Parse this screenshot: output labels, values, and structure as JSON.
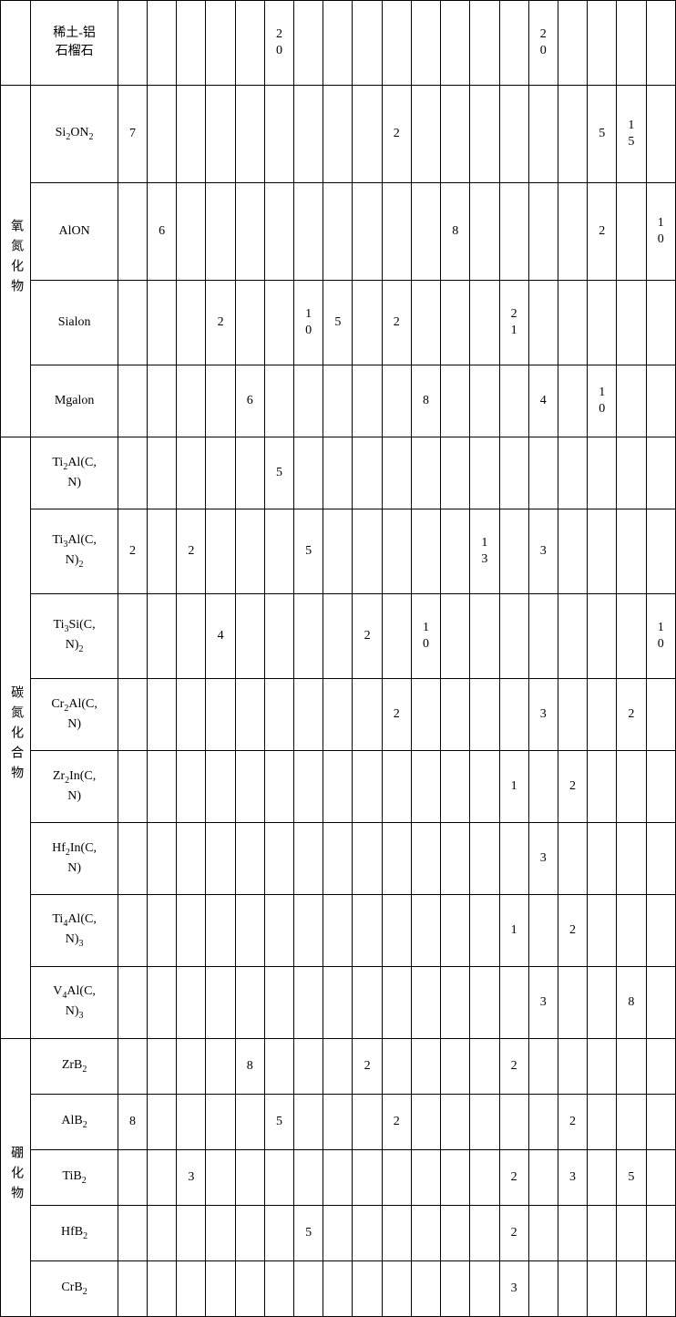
{
  "groups": [
    {
      "label": "",
      "rows": [
        {
          "name": "稀土-铝石榴石",
          "v": [
            "",
            "",
            "",
            "",
            "",
            "20",
            "",
            "",
            "",
            "",
            "",
            "",
            "",
            "",
            "20",
            "",
            "",
            "",
            ""
          ]
        }
      ]
    },
    {
      "label": "氧氮化物",
      "rows": [
        {
          "name": "Si₂ON₂",
          "v": [
            "7",
            "",
            "",
            "",
            "",
            "",
            "",
            "",
            "",
            "2",
            "",
            "",
            "",
            "",
            "",
            "",
            "5",
            "15",
            ""
          ]
        },
        {
          "name": "AlON",
          "v": [
            "",
            "6",
            "",
            "",
            "",
            "",
            "",
            "",
            "",
            "",
            "",
            "8",
            "",
            "",
            "",
            "",
            "2",
            "",
            "10"
          ]
        },
        {
          "name": "Sialon",
          "v": [
            "",
            "",
            "",
            "2",
            "",
            "",
            "10",
            "5",
            "",
            "2",
            "",
            "",
            "",
            "21",
            "",
            "",
            "",
            "",
            ""
          ]
        },
        {
          "name": "Mgalon",
          "v": [
            "",
            "",
            "",
            "",
            "6",
            "",
            "",
            "",
            "",
            "",
            "8",
            "",
            "",
            "",
            "4",
            "",
            "10",
            "",
            ""
          ]
        }
      ]
    },
    {
      "label": "碳氮化合物",
      "rows": [
        {
          "name": "Ti₂Al(C,N)",
          "v": [
            "",
            "",
            "",
            "",
            "",
            "5",
            "",
            "",
            "",
            "",
            "",
            "",
            "",
            "",
            "",
            "",
            "",
            "",
            ""
          ]
        },
        {
          "name": "Ti₃Al(C,N)₂",
          "v": [
            "2",
            "",
            "2",
            "",
            "",
            "",
            "5",
            "",
            "",
            "",
            "",
            "",
            "13",
            "",
            "3",
            "",
            "",
            "",
            ""
          ]
        },
        {
          "name": "Ti₃Si(C,N)₂",
          "v": [
            "",
            "",
            "",
            "4",
            "",
            "",
            "",
            "",
            "2",
            "",
            "10",
            "",
            "",
            "",
            "",
            "",
            "",
            "",
            "10"
          ]
        },
        {
          "name": "Cr₂Al(C,N)",
          "v": [
            "",
            "",
            "",
            "",
            "",
            "",
            "",
            "",
            "",
            "2",
            "",
            "",
            "",
            "",
            "3",
            "",
            "",
            "2",
            ""
          ]
        },
        {
          "name": "Zr₂In(C,N)",
          "v": [
            "",
            "",
            "",
            "",
            "",
            "",
            "",
            "",
            "",
            "",
            "",
            "",
            "",
            "1",
            "",
            "2",
            "",
            "",
            ""
          ]
        },
        {
          "name": "Hf₂In(C,N)",
          "v": [
            "",
            "",
            "",
            "",
            "",
            "",
            "",
            "",
            "",
            "",
            "",
            "",
            "",
            "",
            "3",
            "",
            "",
            "",
            ""
          ]
        },
        {
          "name": "Ti₄Al(C,N)₃",
          "v": [
            "",
            "",
            "",
            "",
            "",
            "",
            "",
            "",
            "",
            "",
            "",
            "",
            "",
            "1",
            "",
            "2",
            "",
            "",
            ""
          ]
        },
        {
          "name": "V₄Al(C,N)₃",
          "v": [
            "",
            "",
            "",
            "",
            "",
            "",
            "",
            "",
            "",
            "",
            "",
            "",
            "",
            "",
            "3",
            "",
            "",
            "8",
            ""
          ]
        }
      ]
    },
    {
      "label": "硼化物",
      "rows": [
        {
          "name": "ZrB₂",
          "v": [
            "",
            "",
            "",
            "",
            "8",
            "",
            "",
            "",
            "2",
            "",
            "",
            "",
            "",
            "2",
            "",
            "",
            "",
            "",
            ""
          ]
        },
        {
          "name": "AlB₂",
          "v": [
            "8",
            "",
            "",
            "",
            "",
            "5",
            "",
            "",
            "",
            "2",
            "",
            "",
            "",
            "",
            "",
            "2",
            "",
            "",
            ""
          ]
        },
        {
          "name": "TiB₂",
          "v": [
            "",
            "",
            "3",
            "",
            "",
            "",
            "",
            "",
            "",
            "",
            "",
            "",
            "",
            "2",
            "",
            "3",
            "",
            "5",
            ""
          ]
        },
        {
          "name": "HfB₂",
          "v": [
            "",
            "",
            "",
            "",
            "",
            "",
            "5",
            "",
            "",
            "",
            "",
            "",
            "",
            "2",
            "",
            "",
            "",
            "",
            ""
          ]
        },
        {
          "name": "CrB₂",
          "v": [
            "",
            "",
            "",
            "",
            "",
            "",
            "",
            "",
            "",
            "",
            "",
            "",
            "",
            "3",
            "",
            "",
            "",
            "",
            ""
          ]
        }
      ]
    }
  ],
  "chem_markup": {
    "稀土-铝石榴石": "稀土-铝<br>石榴石",
    "Si₂ON₂": "Si<sub>2</sub>ON<sub>2</sub>",
    "AlON": "AlON",
    "Sialon": "Sialon",
    "Mgalon": "Mgalon",
    "Ti₂Al(C,N)": "Ti<sub>2</sub>Al(C,<br>N)",
    "Ti₃Al(C,N)₂": "Ti<sub>3</sub>Al(C,<br>N)<sub>2</sub>",
    "Ti₃Si(C,N)₂": "Ti<sub>3</sub>Si(C,<br>N)<sub>2</sub>",
    "Cr₂Al(C,N)": "Cr<sub>2</sub>Al(C,<br>N)",
    "Zr₂In(C,N)": "Zr<sub>2</sub>In(C,<br>N)",
    "Hf₂In(C,N)": "Hf<sub>2</sub>In(C,<br>N)",
    "Ti₄Al(C,N)₃": "Ti<sub>4</sub>Al(C,<br>N)<sub>3</sub>",
    "V₄Al(C,N)₃": "V<sub>4</sub>Al(C,<br>N)<sub>3</sub>",
    "ZrB₂": "ZrB<sub>2</sub>",
    "AlB₂": "AlB<sub>2</sub>",
    "TiB₂": "TiB<sub>2</sub>",
    "HfB₂": "HfB<sub>2</sub>",
    "CrB₂": "CrB<sub>2</sub>"
  },
  "row_heights": {
    "稀土-铝石榴石": "h-dbl",
    "Si₂ON₂": "h-tr",
    "AlON": "h-tr",
    "Sialon": "h-dbl",
    "Mgalon": "h-tall",
    "Ti₂Al(C,N)": "h-tall",
    "Ti₃Al(C,N)₂": "h-dbl",
    "Ti₃Si(C,N)₂": "h-dbl",
    "Cr₂Al(C,N)": "h-tall",
    "Zr₂In(C,N)": "h-tall",
    "Hf₂In(C,N)": "h-tall",
    "Ti₄Al(C,N)₃": "h-tall",
    "V₄Al(C,N)₃": "h-tall",
    "ZrB₂": "h-sm",
    "AlB₂": "h-sm",
    "TiB₂": "h-sm",
    "HfB₂": "h-sm",
    "CrB₂": "h-sm"
  }
}
